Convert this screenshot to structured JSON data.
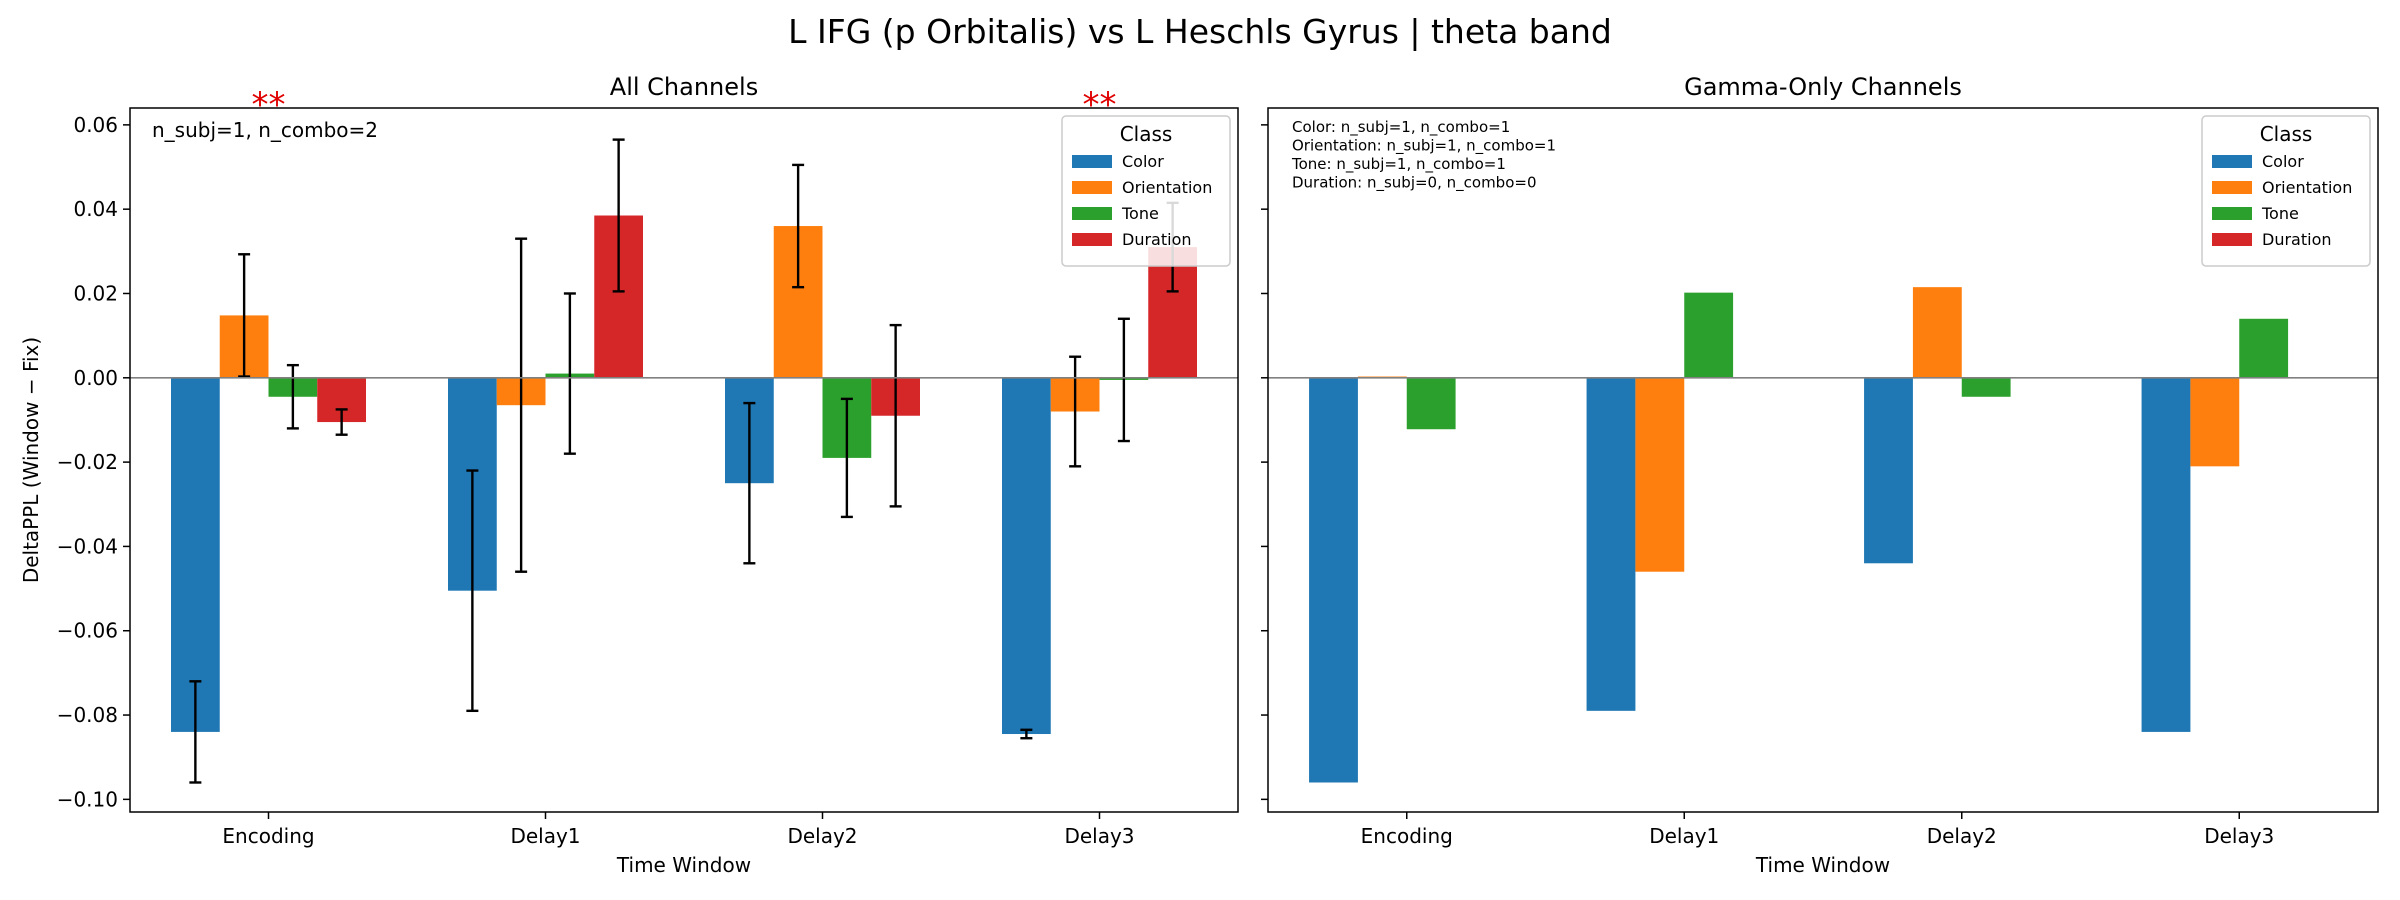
{
  "figure": {
    "suptitle": "L IFG (p Orbitalis) vs L Heschls Gyrus  |  theta band"
  },
  "colors": {
    "Color": "#1f77b4",
    "Orientation": "#ff7f0e",
    "Tone": "#2ca02c",
    "Duration": "#d62728",
    "significance": "#e00000"
  },
  "chart_data": [
    {
      "type": "bar",
      "title": "All Channels",
      "xlabel": "Time Window",
      "ylabel": "DeltaPPL (Window − Fix)",
      "categories": [
        "Encoding",
        "Delay1",
        "Delay2",
        "Delay3"
      ],
      "ylim": [
        -0.103,
        0.064
      ],
      "yticks": [
        -0.1,
        -0.08,
        -0.06,
        -0.04,
        -0.02,
        0.0,
        0.02,
        0.04,
        0.06
      ],
      "ytick_labels": [
        "−0.10",
        "−0.08",
        "−0.06",
        "−0.04",
        "−0.02",
        "0.00",
        "0.02",
        "0.04",
        "0.06"
      ],
      "legend": {
        "title": "Class",
        "position": "top-right"
      },
      "annotations": [
        "n_subj=1, n_combo=2"
      ],
      "significance": [
        {
          "category": "Encoding",
          "label": "**"
        },
        {
          "category": "Delay3",
          "label": "**"
        }
      ],
      "series": [
        {
          "name": "Color",
          "values": [
            -0.084,
            -0.0505,
            -0.025,
            -0.0845
          ],
          "errors": [
            0.012,
            0.0285,
            0.019,
            0.001
          ]
        },
        {
          "name": "Orientation",
          "values": [
            0.0148,
            -0.0065,
            0.036,
            -0.008
          ],
          "errors": [
            0.0145,
            0.0395,
            0.0145,
            0.013
          ]
        },
        {
          "name": "Tone",
          "values": [
            -0.0045,
            0.001,
            -0.019,
            -0.0005
          ],
          "errors": [
            0.0075,
            0.019,
            0.014,
            0.0145
          ]
        },
        {
          "name": "Duration",
          "values": [
            -0.0105,
            0.0385,
            -0.009,
            0.031
          ],
          "errors": [
            0.003,
            0.018,
            0.0215,
            0.0105
          ]
        }
      ]
    },
    {
      "type": "bar",
      "title": "Gamma-Only Channels",
      "xlabel": "Time Window",
      "ylabel": "",
      "categories": [
        "Encoding",
        "Delay1",
        "Delay2",
        "Delay3"
      ],
      "ylim": [
        -0.103,
        0.064
      ],
      "legend": {
        "title": "Class",
        "position": "top-right"
      },
      "annotations": [
        "Color: n_subj=1, n_combo=1",
        "Orientation: n_subj=1, n_combo=1",
        "Tone: n_subj=1, n_combo=1",
        "Duration: n_subj=0, n_combo=0"
      ],
      "series": [
        {
          "name": "Color",
          "values": [
            -0.096,
            -0.079,
            -0.044,
            -0.084
          ]
        },
        {
          "name": "Orientation",
          "values": [
            0.0003,
            -0.046,
            0.0215,
            -0.021
          ]
        },
        {
          "name": "Tone",
          "values": [
            -0.0122,
            0.0202,
            -0.0045,
            0.014
          ]
        },
        {
          "name": "Duration",
          "values": [
            null,
            null,
            null,
            null
          ]
        }
      ]
    }
  ]
}
